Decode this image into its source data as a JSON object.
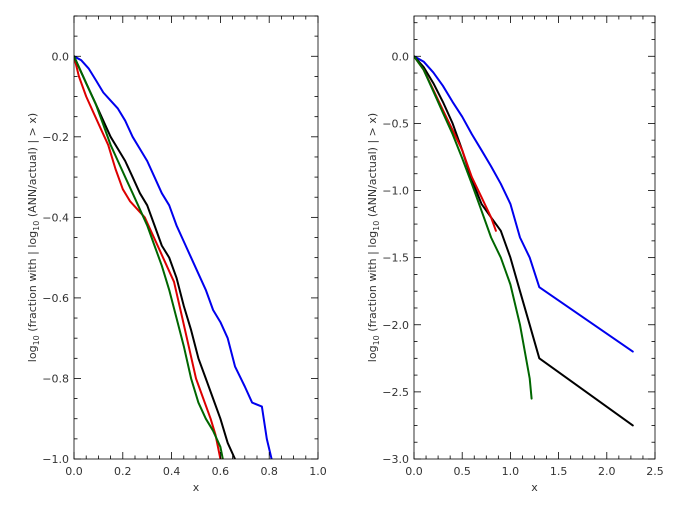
{
  "chart_data": [
    {
      "type": "line",
      "xlabel": "x",
      "ylabel_parts": [
        "log",
        "10",
        " (fraction with | log",
        "10",
        " (ANN/actual) | > x)"
      ],
      "xlim": [
        0.0,
        1.0
      ],
      "ylim": [
        -1.0,
        0.1
      ],
      "xticks": [
        0.0,
        0.2,
        0.4,
        0.6,
        0.8,
        1.0
      ],
      "xtick_labels": [
        "0.0",
        "0.2",
        "0.4",
        "0.6",
        "0.8",
        "1.0"
      ],
      "yticks": [
        -1.0,
        -0.8,
        -0.6,
        -0.4,
        -0.2,
        0.0
      ],
      "ytick_labels": [
        "−1.0",
        "−0.8",
        "−0.6",
        "−0.4",
        "−0.2",
        "0.0"
      ],
      "series": [
        {
          "color": "#0000ee",
          "x": [
            0.0,
            0.03,
            0.06,
            0.09,
            0.12,
            0.15,
            0.18,
            0.21,
            0.24,
            0.27,
            0.3,
            0.33,
            0.36,
            0.39,
            0.42,
            0.45,
            0.48,
            0.51,
            0.54,
            0.57,
            0.6,
            0.63,
            0.66,
            0.7,
            0.73,
            0.77,
            0.79,
            0.81
          ],
          "y": [
            0.0,
            -0.01,
            -0.03,
            -0.06,
            -0.09,
            -0.11,
            -0.13,
            -0.16,
            -0.2,
            -0.23,
            -0.26,
            -0.3,
            -0.34,
            -0.37,
            -0.42,
            -0.46,
            -0.5,
            -0.54,
            -0.58,
            -0.63,
            -0.66,
            -0.7,
            -0.77,
            -0.82,
            -0.86,
            -0.87,
            -0.95,
            -1.0
          ]
        },
        {
          "color": "#000000",
          "x": [
            0.0,
            0.03,
            0.06,
            0.09,
            0.12,
            0.15,
            0.18,
            0.21,
            0.24,
            0.27,
            0.3,
            0.33,
            0.36,
            0.39,
            0.42,
            0.45,
            0.48,
            0.51,
            0.54,
            0.57,
            0.6,
            0.63,
            0.66
          ],
          "y": [
            0.0,
            -0.04,
            -0.08,
            -0.12,
            -0.16,
            -0.2,
            -0.23,
            -0.26,
            -0.3,
            -0.34,
            -0.37,
            -0.42,
            -0.47,
            -0.5,
            -0.55,
            -0.62,
            -0.68,
            -0.75,
            -0.8,
            -0.85,
            -0.9,
            -0.96,
            -1.0
          ]
        },
        {
          "color": "#dd0000",
          "x": [
            0.0,
            0.02,
            0.05,
            0.08,
            0.11,
            0.14,
            0.17,
            0.2,
            0.23,
            0.26,
            0.29,
            0.32,
            0.35,
            0.38,
            0.41,
            0.44,
            0.47,
            0.5,
            0.53,
            0.56,
            0.58,
            0.6
          ],
          "y": [
            0.0,
            -0.05,
            -0.1,
            -0.14,
            -0.18,
            -0.22,
            -0.28,
            -0.33,
            -0.36,
            -0.38,
            -0.4,
            -0.44,
            -0.48,
            -0.52,
            -0.56,
            -0.64,
            -0.72,
            -0.8,
            -0.85,
            -0.9,
            -0.94,
            -1.0
          ]
        },
        {
          "color": "#006600",
          "x": [
            0.0,
            0.03,
            0.06,
            0.09,
            0.12,
            0.15,
            0.18,
            0.21,
            0.24,
            0.27,
            0.3,
            0.33,
            0.36,
            0.39,
            0.42,
            0.45,
            0.48,
            0.51,
            0.54,
            0.57,
            0.6,
            0.61
          ],
          "y": [
            0.0,
            -0.04,
            -0.08,
            -0.12,
            -0.17,
            -0.22,
            -0.26,
            -0.3,
            -0.34,
            -0.38,
            -0.42,
            -0.47,
            -0.52,
            -0.58,
            -0.65,
            -0.72,
            -0.8,
            -0.86,
            -0.9,
            -0.93,
            -0.97,
            -1.0
          ]
        }
      ]
    },
    {
      "type": "line",
      "xlabel": "x",
      "ylabel_parts": [
        "log",
        "10",
        " (fraction with | log",
        "10",
        " (ANN/actual) | > x)"
      ],
      "xlim": [
        0.0,
        2.5
      ],
      "ylim": [
        -3.0,
        0.3
      ],
      "xticks": [
        0.0,
        0.5,
        1.0,
        1.5,
        2.0,
        2.5
      ],
      "xtick_labels": [
        "0.0",
        "0.5",
        "1.0",
        "1.5",
        "2.0",
        "2.5"
      ],
      "yticks": [
        -3.0,
        -2.5,
        -2.0,
        -1.5,
        -1.0,
        -0.5,
        0.0
      ],
      "ytick_labels": [
        "−3.0",
        "−2.5",
        "−2.0",
        "−1.5",
        "−1.0",
        "−0.5",
        "0.0"
      ],
      "series": [
        {
          "color": "#0000ee",
          "x": [
            0.0,
            0.1,
            0.2,
            0.3,
            0.4,
            0.5,
            0.6,
            0.7,
            0.8,
            0.9,
            1.0,
            1.1,
            1.2,
            1.3,
            2.27
          ],
          "y": [
            0.0,
            -0.04,
            -0.12,
            -0.22,
            -0.34,
            -0.45,
            -0.58,
            -0.7,
            -0.82,
            -0.95,
            -1.1,
            -1.35,
            -1.5,
            -1.72,
            -2.2
          ]
        },
        {
          "color": "#000000",
          "x": [
            0.0,
            0.1,
            0.2,
            0.3,
            0.4,
            0.5,
            0.6,
            0.7,
            0.8,
            0.9,
            1.0,
            1.1,
            1.2,
            1.3,
            2.27
          ],
          "y": [
            0.0,
            -0.08,
            -0.2,
            -0.34,
            -0.5,
            -0.7,
            -0.92,
            -1.1,
            -1.2,
            -1.3,
            -1.5,
            -1.75,
            -2.0,
            -2.25,
            -2.75
          ]
        },
        {
          "color": "#dd0000",
          "x": [
            0.0,
            0.1,
            0.2,
            0.3,
            0.4,
            0.5,
            0.6,
            0.7,
            0.8,
            0.85
          ],
          "y": [
            0.0,
            -0.1,
            -0.25,
            -0.4,
            -0.55,
            -0.7,
            -0.9,
            -1.05,
            -1.2,
            -1.3
          ]
        },
        {
          "color": "#006600",
          "x": [
            0.0,
            0.1,
            0.2,
            0.3,
            0.4,
            0.5,
            0.6,
            0.7,
            0.8,
            0.9,
            1.0,
            1.1,
            1.2,
            1.22
          ],
          "y": [
            0.0,
            -0.1,
            -0.26,
            -0.42,
            -0.58,
            -0.76,
            -0.95,
            -1.15,
            -1.35,
            -1.5,
            -1.7,
            -2.0,
            -2.4,
            -2.55
          ]
        }
      ]
    }
  ]
}
